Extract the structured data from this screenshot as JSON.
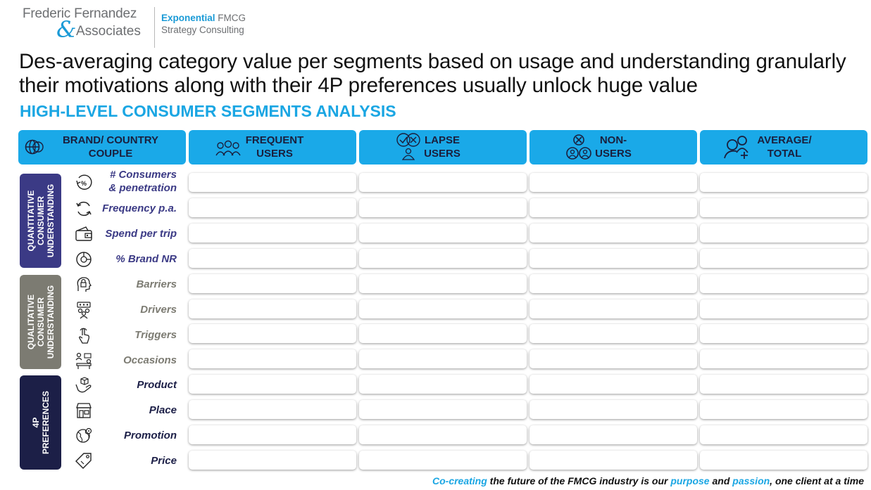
{
  "logo": {
    "name_line1": "Frederic Fernandez",
    "ampersand": "&",
    "name_line2": "Associates",
    "tag_bold": "Exponential",
    "tag_rest": " FMCG",
    "tag_line2": "Strategy Consulting"
  },
  "headline": "Des-averaging category value per segments based on usage and understanding granularly their motivations along with their 4P preferences usually unlock huge value",
  "subtitle": "HIGH-LEVEL CONSUMER SEGMENTS ANALYSIS",
  "columns": [
    {
      "line1": "BRAND/ COUNTRY",
      "line2": "COUPLE",
      "icon": "globe-icon"
    },
    {
      "line1": "FREQUENT",
      "line2": "USERS",
      "icon": "users-group-icon"
    },
    {
      "line1": "LAPSE",
      "line2": "USERS",
      "icon": "check-cross-user-icon"
    },
    {
      "line1": "NON-",
      "line2": "USERS",
      "icon": "non-users-icon"
    },
    {
      "line1": "AVERAGE/",
      "line2": "TOTAL",
      "icon": "add-users-icon"
    }
  ],
  "categories": [
    {
      "line1": "QUANTITATIVE",
      "line2": "CONSUMER",
      "line3": "UNDERSTANDING",
      "color": "#3b3a85"
    },
    {
      "line1": "QUALITATIVE",
      "line2": "CONSUMER",
      "line3": "UNDERSTANDING",
      "color": "#7c7b72"
    },
    {
      "line1": "4P",
      "line2": "PREFERENCES",
      "line3": "",
      "color": "#1c1f47"
    }
  ],
  "rows": [
    {
      "line1": "# Consumers",
      "line2": "& penetration",
      "icon": "percent-cycle-icon",
      "color": "#3b3a85"
    },
    {
      "line1": "Frequency p.a.",
      "line2": "",
      "icon": "refresh-icon",
      "color": "#3b3a85"
    },
    {
      "line1": "Spend per trip",
      "line2": "",
      "icon": "wallet-icon",
      "color": "#3b3a85"
    },
    {
      "line1": "% Brand NR",
      "line2": "",
      "icon": "pie-chart-icon",
      "color": "#3b3a85"
    },
    {
      "line1": "Barriers",
      "line2": "",
      "icon": "head-lock-icon",
      "color": "#7c7b72"
    },
    {
      "line1": "Drivers",
      "line2": "",
      "icon": "team-icon",
      "color": "#7c7b72"
    },
    {
      "line1": "Triggers",
      "line2": "",
      "icon": "hand-touch-icon",
      "color": "#7c7b72"
    },
    {
      "line1": "Occasions",
      "line2": "",
      "icon": "people-table-icon",
      "color": "#7c7b72"
    },
    {
      "line1": "Product",
      "line2": "",
      "icon": "hand-box-icon",
      "color": "#1c1f47"
    },
    {
      "line1": "Place",
      "line2": "",
      "icon": "store-icon",
      "color": "#1c1f47"
    },
    {
      "line1": "Promotion",
      "line2": "",
      "icon": "globe-gear-icon",
      "color": "#1c1f47"
    },
    {
      "line1": "Price",
      "line2": "",
      "icon": "price-tag-icon",
      "color": "#1c1f47"
    }
  ],
  "footer": {
    "part1": "Co-creating",
    "part2": " the future of the FMCG industry is our ",
    "part3": "purpose",
    "part4": " and ",
    "part5": "passion",
    "part6": ", one client at a time"
  }
}
